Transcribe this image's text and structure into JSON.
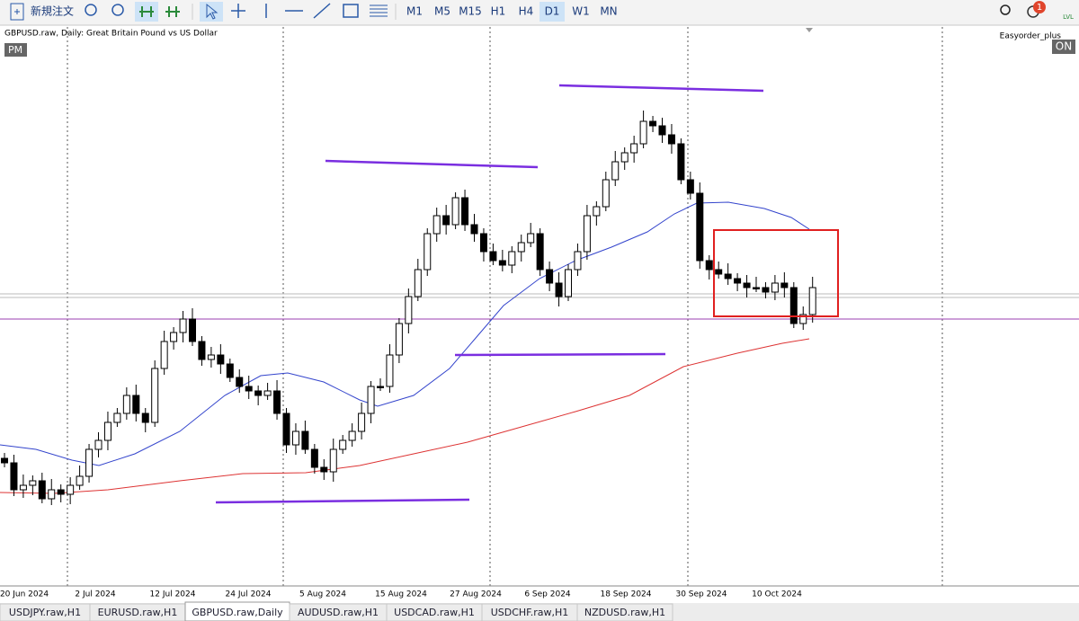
{
  "toolbar": {
    "new_order": "新規注文",
    "timeframes": [
      "M1",
      "M5",
      "M15",
      "H1",
      "H4",
      "D1",
      "W1",
      "MN"
    ],
    "notification_count": "1",
    "lvl_label": "LVL"
  },
  "chart": {
    "title": "GBPUSD.raw, Daily:  Great Britain Pound vs US Dollar",
    "left_badge": "PM",
    "expert_name": "Easyorder_plus",
    "right_badge": "ON",
    "date_labels": [
      "20 Jun 2024",
      "2 Jul 2024",
      "12 Jul 2024",
      "24 Jul 2024",
      "5 Aug 2024",
      "15 Aug 2024",
      "27 Aug 2024",
      "6 Sep 2024",
      "18 Sep 2024",
      "30 Sep 2024",
      "10 Oct 2024"
    ]
  },
  "tabs": [
    "USDJPY.raw,H1",
    "EURUSD.raw,H1",
    "GBPUSD.raw,Daily",
    "AUDUSD.raw,H1",
    "USDCAD.raw,H1",
    "USDCHF.raw,H1",
    "NZDUSD.raw,H1"
  ]
}
